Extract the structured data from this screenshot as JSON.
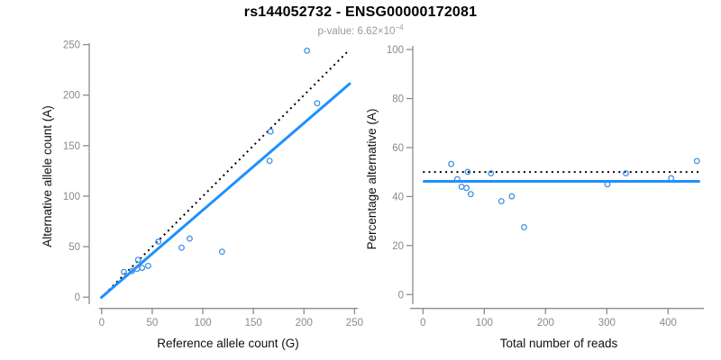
{
  "header": {
    "title": "rs144052732 - ENSG00000172081",
    "subtitle_prefix": "p-value: ",
    "subtitle_value": "6.62×10",
    "subtitle_exponent": "−4"
  },
  "colors": {
    "line_blue": "#1E90FF",
    "point_blue": "#4291E2",
    "dashed_black": "#000000",
    "axis_gray": "#8C8C8C",
    "tick_label_gray": "#8A8A8A",
    "axis_title_black": "#111111"
  },
  "chart_data": [
    {
      "id": "allele-counts-scatter",
      "type": "scatter",
      "xlabel": "Reference allele count (G)",
      "ylabel": "Alternative allele count (A)",
      "xlim": [
        0,
        250
      ],
      "ylim": [
        0,
        250
      ],
      "xticks": [
        0,
        50,
        100,
        150,
        200,
        250
      ],
      "yticks": [
        0,
        50,
        100,
        150,
        200,
        250
      ],
      "grid": false,
      "points": [
        [
          22,
          25
        ],
        [
          30,
          26
        ],
        [
          35,
          28
        ],
        [
          40,
          29
        ],
        [
          36,
          37
        ],
        [
          46,
          31
        ],
        [
          56,
          55
        ],
        [
          79,
          49
        ],
        [
          87,
          58
        ],
        [
          119,
          45
        ],
        [
          166,
          135
        ],
        [
          167,
          164
        ],
        [
          213,
          192
        ],
        [
          203,
          244
        ]
      ],
      "lines": [
        {
          "name": "identity-line",
          "style": "dotted",
          "color": "black",
          "from": [
            -1,
            -1
          ],
          "to": [
            244,
            244
          ]
        },
        {
          "name": "regression-line",
          "style": "solid",
          "color": "blue",
          "from": [
            -1,
            -0.9
          ],
          "to": [
            246,
            212
          ]
        }
      ]
    },
    {
      "id": "percentage-alternative-scatter",
      "type": "scatter",
      "xlabel": "Total number of reads",
      "ylabel": "Percentage alternative (A)",
      "xlim": [
        0,
        450
      ],
      "ylim": [
        0,
        100
      ],
      "xticks": [
        0,
        100,
        200,
        300,
        400
      ],
      "yticks": [
        0,
        20,
        40,
        60,
        80,
        100
      ],
      "grid": false,
      "points": [
        [
          46,
          53.3
        ],
        [
          56,
          47.1
        ],
        [
          63,
          44
        ],
        [
          71,
          43.5
        ],
        [
          73,
          50.1
        ],
        [
          78,
          41
        ],
        [
          111,
          49.5
        ],
        [
          128,
          38.1
        ],
        [
          145,
          40.1
        ],
        [
          165,
          27.5
        ],
        [
          301,
          45
        ],
        [
          331,
          49.5
        ],
        [
          405,
          47.5
        ],
        [
          447,
          54.5
        ]
      ],
      "lines": [
        {
          "name": "expected-50-percent-line",
          "style": "dotted",
          "color": "black",
          "from": [
            0,
            50
          ],
          "to": [
            452,
            50
          ]
        },
        {
          "name": "observed-mean-line",
          "style": "solid",
          "color": "blue",
          "from": [
            0,
            46.2
          ],
          "to": [
            452,
            46.2
          ]
        }
      ]
    }
  ]
}
